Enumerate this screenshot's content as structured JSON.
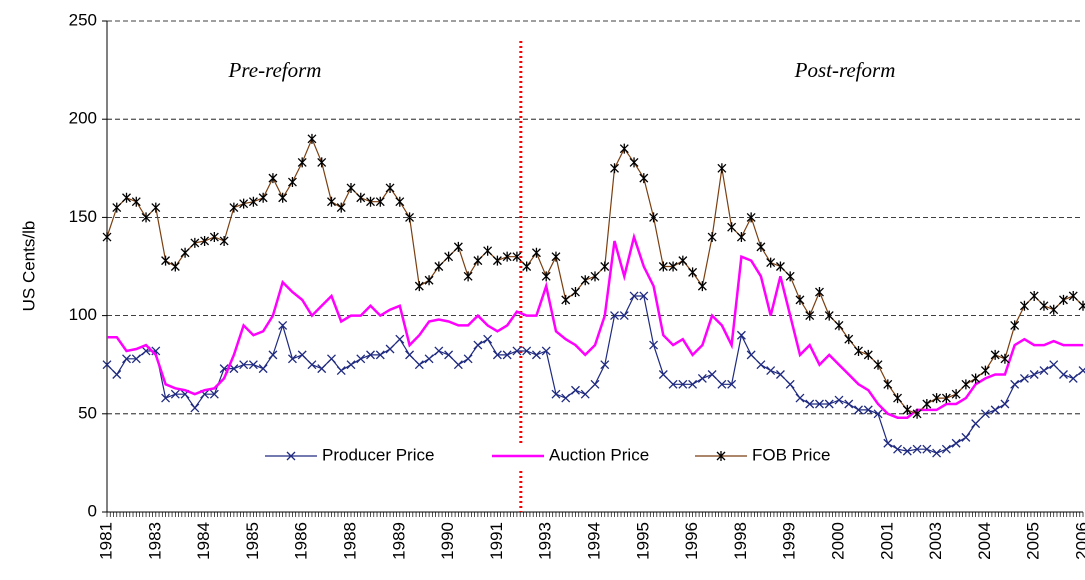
{
  "chart_data": {
    "type": "line",
    "y_label": "US Cents/lb",
    "annotations": [
      "Pre-reform",
      "Post-reform"
    ],
    "reform_at": 42.4,
    "reform_color": "#ff0000",
    "legend": "lower-center",
    "grid": true,
    "ylim": [
      0,
      250
    ],
    "yticks": [
      0,
      50,
      100,
      150,
      200,
      250
    ],
    "categories": [
      "1981",
      null,
      null,
      null,
      null,
      "1983",
      null,
      null,
      null,
      null,
      "1984",
      null,
      null,
      null,
      null,
      "1985",
      null,
      null,
      null,
      null,
      "1986",
      null,
      null,
      null,
      null,
      "1988",
      null,
      null,
      null,
      null,
      "1989",
      null,
      null,
      null,
      null,
      "1990",
      null,
      null,
      null,
      null,
      "1991",
      null,
      null,
      null,
      null,
      "1993",
      null,
      null,
      null,
      null,
      "1994",
      null,
      null,
      null,
      null,
      "1995",
      null,
      null,
      null,
      null,
      "1996",
      null,
      null,
      null,
      null,
      "1998",
      null,
      null,
      null,
      null,
      "1999",
      null,
      null,
      null,
      null,
      "2000",
      null,
      null,
      null,
      null,
      "2001",
      null,
      null,
      null,
      null,
      "2003",
      null,
      null,
      null,
      null,
      "2004",
      null,
      null,
      null,
      null,
      "2005",
      null,
      null,
      null,
      null,
      "2006"
    ],
    "series": [
      {
        "name": "Producer Price",
        "color": "#1f2a80",
        "marker": "x",
        "marker_color": "#1f2a80",
        "values": [
          75,
          70,
          78,
          78,
          82,
          82,
          58,
          60,
          60,
          53,
          60,
          60,
          73,
          73,
          75,
          75,
          73,
          80,
          95,
          78,
          80,
          75,
          73,
          78,
          72,
          75,
          78,
          80,
          80,
          83,
          88,
          80,
          75,
          78,
          82,
          80,
          75,
          78,
          85,
          88,
          80,
          80,
          82,
          82,
          80,
          82,
          60,
          58,
          62,
          60,
          65,
          75,
          100,
          100,
          110,
          110,
          85,
          70,
          65,
          65,
          65,
          68,
          70,
          65,
          65,
          90,
          80,
          75,
          72,
          70,
          65,
          58,
          55,
          55,
          55,
          57,
          55,
          52,
          52,
          50,
          35,
          32,
          31,
          32,
          32,
          30,
          32,
          35,
          38,
          45,
          50,
          52,
          55,
          65,
          68,
          70,
          72,
          75,
          70,
          68,
          72
        ]
      },
      {
        "name": "Auction Price",
        "color": "#ff00ff",
        "marker": "none",
        "marker_color": "#ff00ff",
        "values": [
          89,
          89,
          82,
          83,
          85,
          80,
          65,
          63,
          62,
          60,
          62,
          63,
          68,
          80,
          95,
          90,
          92,
          100,
          117,
          112,
          108,
          100,
          105,
          110,
          97,
          100,
          100,
          105,
          100,
          103,
          105,
          85,
          90,
          97,
          98,
          97,
          95,
          95,
          100,
          95,
          92,
          95,
          102,
          100,
          100,
          115,
          92,
          88,
          85,
          80,
          85,
          100,
          138,
          120,
          140,
          125,
          115,
          90,
          85,
          88,
          80,
          85,
          100,
          95,
          85,
          130,
          128,
          120,
          100,
          120,
          100,
          80,
          85,
          75,
          80,
          75,
          70,
          65,
          62,
          55,
          50,
          48,
          48,
          52,
          52,
          52,
          55,
          55,
          58,
          65,
          68,
          70,
          70,
          85,
          88,
          85,
          85,
          87,
          85,
          85,
          85
        ]
      },
      {
        "name": "FOB Price",
        "color": "#7b3f10",
        "marker": "star",
        "marker_color": "#000000",
        "values": [
          140,
          155,
          160,
          158,
          150,
          155,
          128,
          125,
          132,
          137,
          138,
          140,
          138,
          155,
          157,
          158,
          160,
          170,
          160,
          168,
          178,
          190,
          178,
          158,
          155,
          165,
          160,
          158,
          158,
          165,
          158,
          150,
          115,
          118,
          125,
          130,
          135,
          120,
          128,
          133,
          128,
          130,
          130,
          125,
          132,
          120,
          130,
          108,
          112,
          118,
          120,
          125,
          175,
          185,
          178,
          170,
          150,
          125,
          125,
          128,
          122,
          115,
          140,
          175,
          145,
          140,
          150,
          135,
          127,
          125,
          120,
          108,
          100,
          112,
          100,
          95,
          88,
          82,
          80,
          75,
          65,
          58,
          52,
          50,
          55,
          58,
          58,
          60,
          65,
          68,
          72,
          80,
          78,
          95,
          105,
          110,
          105,
          103,
          108,
          110,
          105
        ]
      }
    ]
  }
}
